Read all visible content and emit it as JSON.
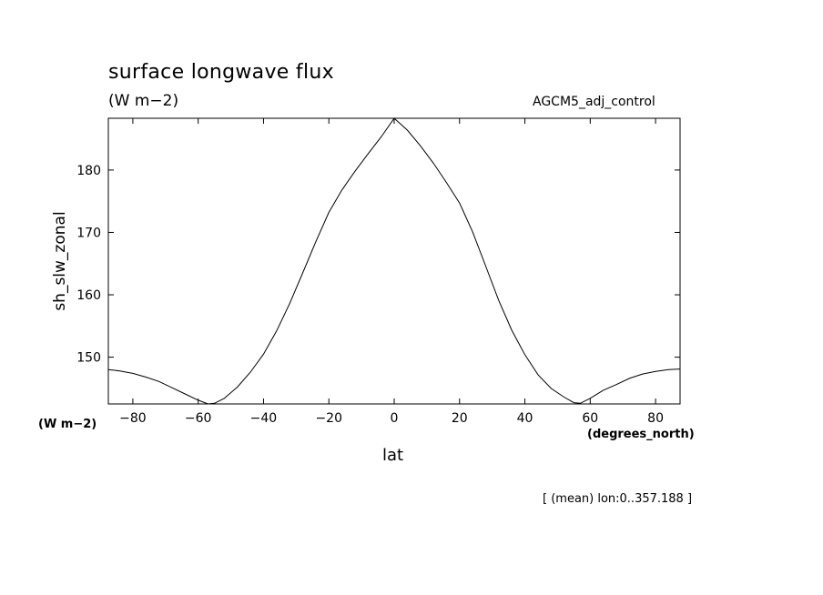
{
  "header": {
    "title": "surface longwave flux",
    "units": "(W m−2)",
    "dataset": "AGCM5_adj_control"
  },
  "axes": {
    "ylabel": "sh_slw_zonal",
    "yunits": "(W m−2)",
    "xlabel": "lat",
    "xunits": "(degrees_north)"
  },
  "footer": {
    "note": "[ (mean) lon:0..357.188 ]"
  },
  "chart_data": {
    "type": "line",
    "title": "surface longwave flux",
    "xlabel": "lat",
    "ylabel": "sh_slw_zonal",
    "xlim": [
      -87.5,
      87.5
    ],
    "ylim": [
      142.5,
      188.3
    ],
    "xticks": [
      -80,
      -60,
      -40,
      -20,
      0,
      20,
      40,
      60,
      80
    ],
    "xtick_labels": [
      "−80",
      "−60",
      "−40",
      "−20",
      "0",
      "20",
      "40",
      "60",
      "80"
    ],
    "yticks": [
      150,
      160,
      170,
      180
    ],
    "ytick_labels": [
      "150",
      "160",
      "170",
      "180"
    ],
    "grid": false,
    "series": [
      {
        "x": [
          -87.5,
          -84,
          -80,
          -76,
          -72,
          -68,
          -64,
          -60,
          -57,
          -55,
          -52,
          -48,
          -44,
          -40,
          -36,
          -32,
          -28,
          -24,
          -20,
          -16,
          -12,
          -8,
          -4,
          0,
          4,
          8,
          12,
          16,
          20,
          24,
          28,
          32,
          36,
          40,
          44,
          48,
          52,
          55,
          57,
          60,
          64,
          68,
          72,
          76,
          80,
          84,
          87.5
        ],
        "y": [
          148.0,
          147.8,
          147.4,
          146.8,
          146.1,
          145.1,
          144.1,
          143.1,
          142.5,
          142.6,
          143.4,
          145.2,
          147.6,
          150.5,
          154.2,
          158.6,
          163.5,
          168.5,
          173.2,
          176.8,
          179.8,
          182.6,
          185.3,
          188.3,
          186.4,
          183.9,
          181.1,
          178.0,
          174.7,
          170.1,
          164.6,
          159.1,
          154.3,
          150.4,
          147.2,
          145.0,
          143.6,
          142.7,
          142.6,
          143.4,
          144.7,
          145.6,
          146.6,
          147.3,
          147.7,
          148.0,
          148.1
        ]
      }
    ]
  }
}
